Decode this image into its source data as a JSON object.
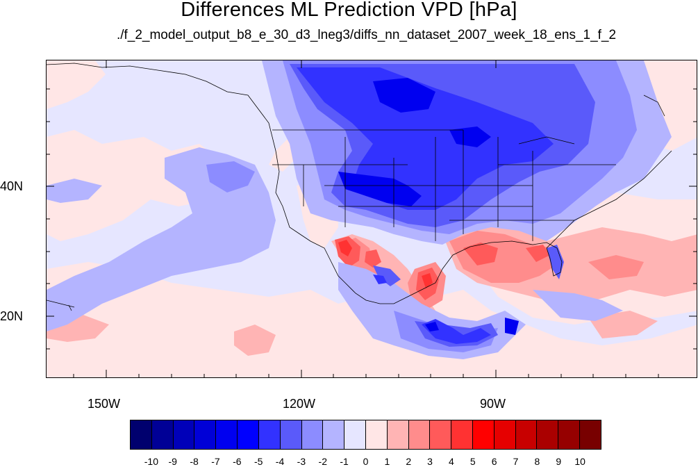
{
  "title": "Differences ML Prediction VPD [hPa]",
  "subtitle": "./f_2_model_output_b8_e_30_d3_lneg3/diffs_nn_dataset_2007_week_18_ens_1_f_2",
  "axes": {
    "lat_labels": [
      "40N",
      "20N"
    ],
    "lon_labels": [
      "150W",
      "120W",
      "90W"
    ]
  },
  "colorbar": {
    "labels": [
      "-10",
      "-9",
      "-8",
      "-7",
      "-6",
      "-5",
      "-4",
      "-3",
      "-2",
      "-1",
      "0",
      "1",
      "2",
      "3",
      "4",
      "5",
      "6",
      "7",
      "8",
      "9",
      "10"
    ],
    "colors": [
      "#00006e",
      "#000096",
      "#0000b9",
      "#0000d7",
      "#0000f0",
      "#0000ff",
      "#3232ff",
      "#5a5afa",
      "#8c8cff",
      "#b4b4ff",
      "#e6e6ff",
      "#ffe6e6",
      "#ffb4b4",
      "#ff8c8c",
      "#ff5a5a",
      "#ff3232",
      "#ff0000",
      "#e60000",
      "#c80000",
      "#aa0000",
      "#960000",
      "#780000"
    ]
  }
}
